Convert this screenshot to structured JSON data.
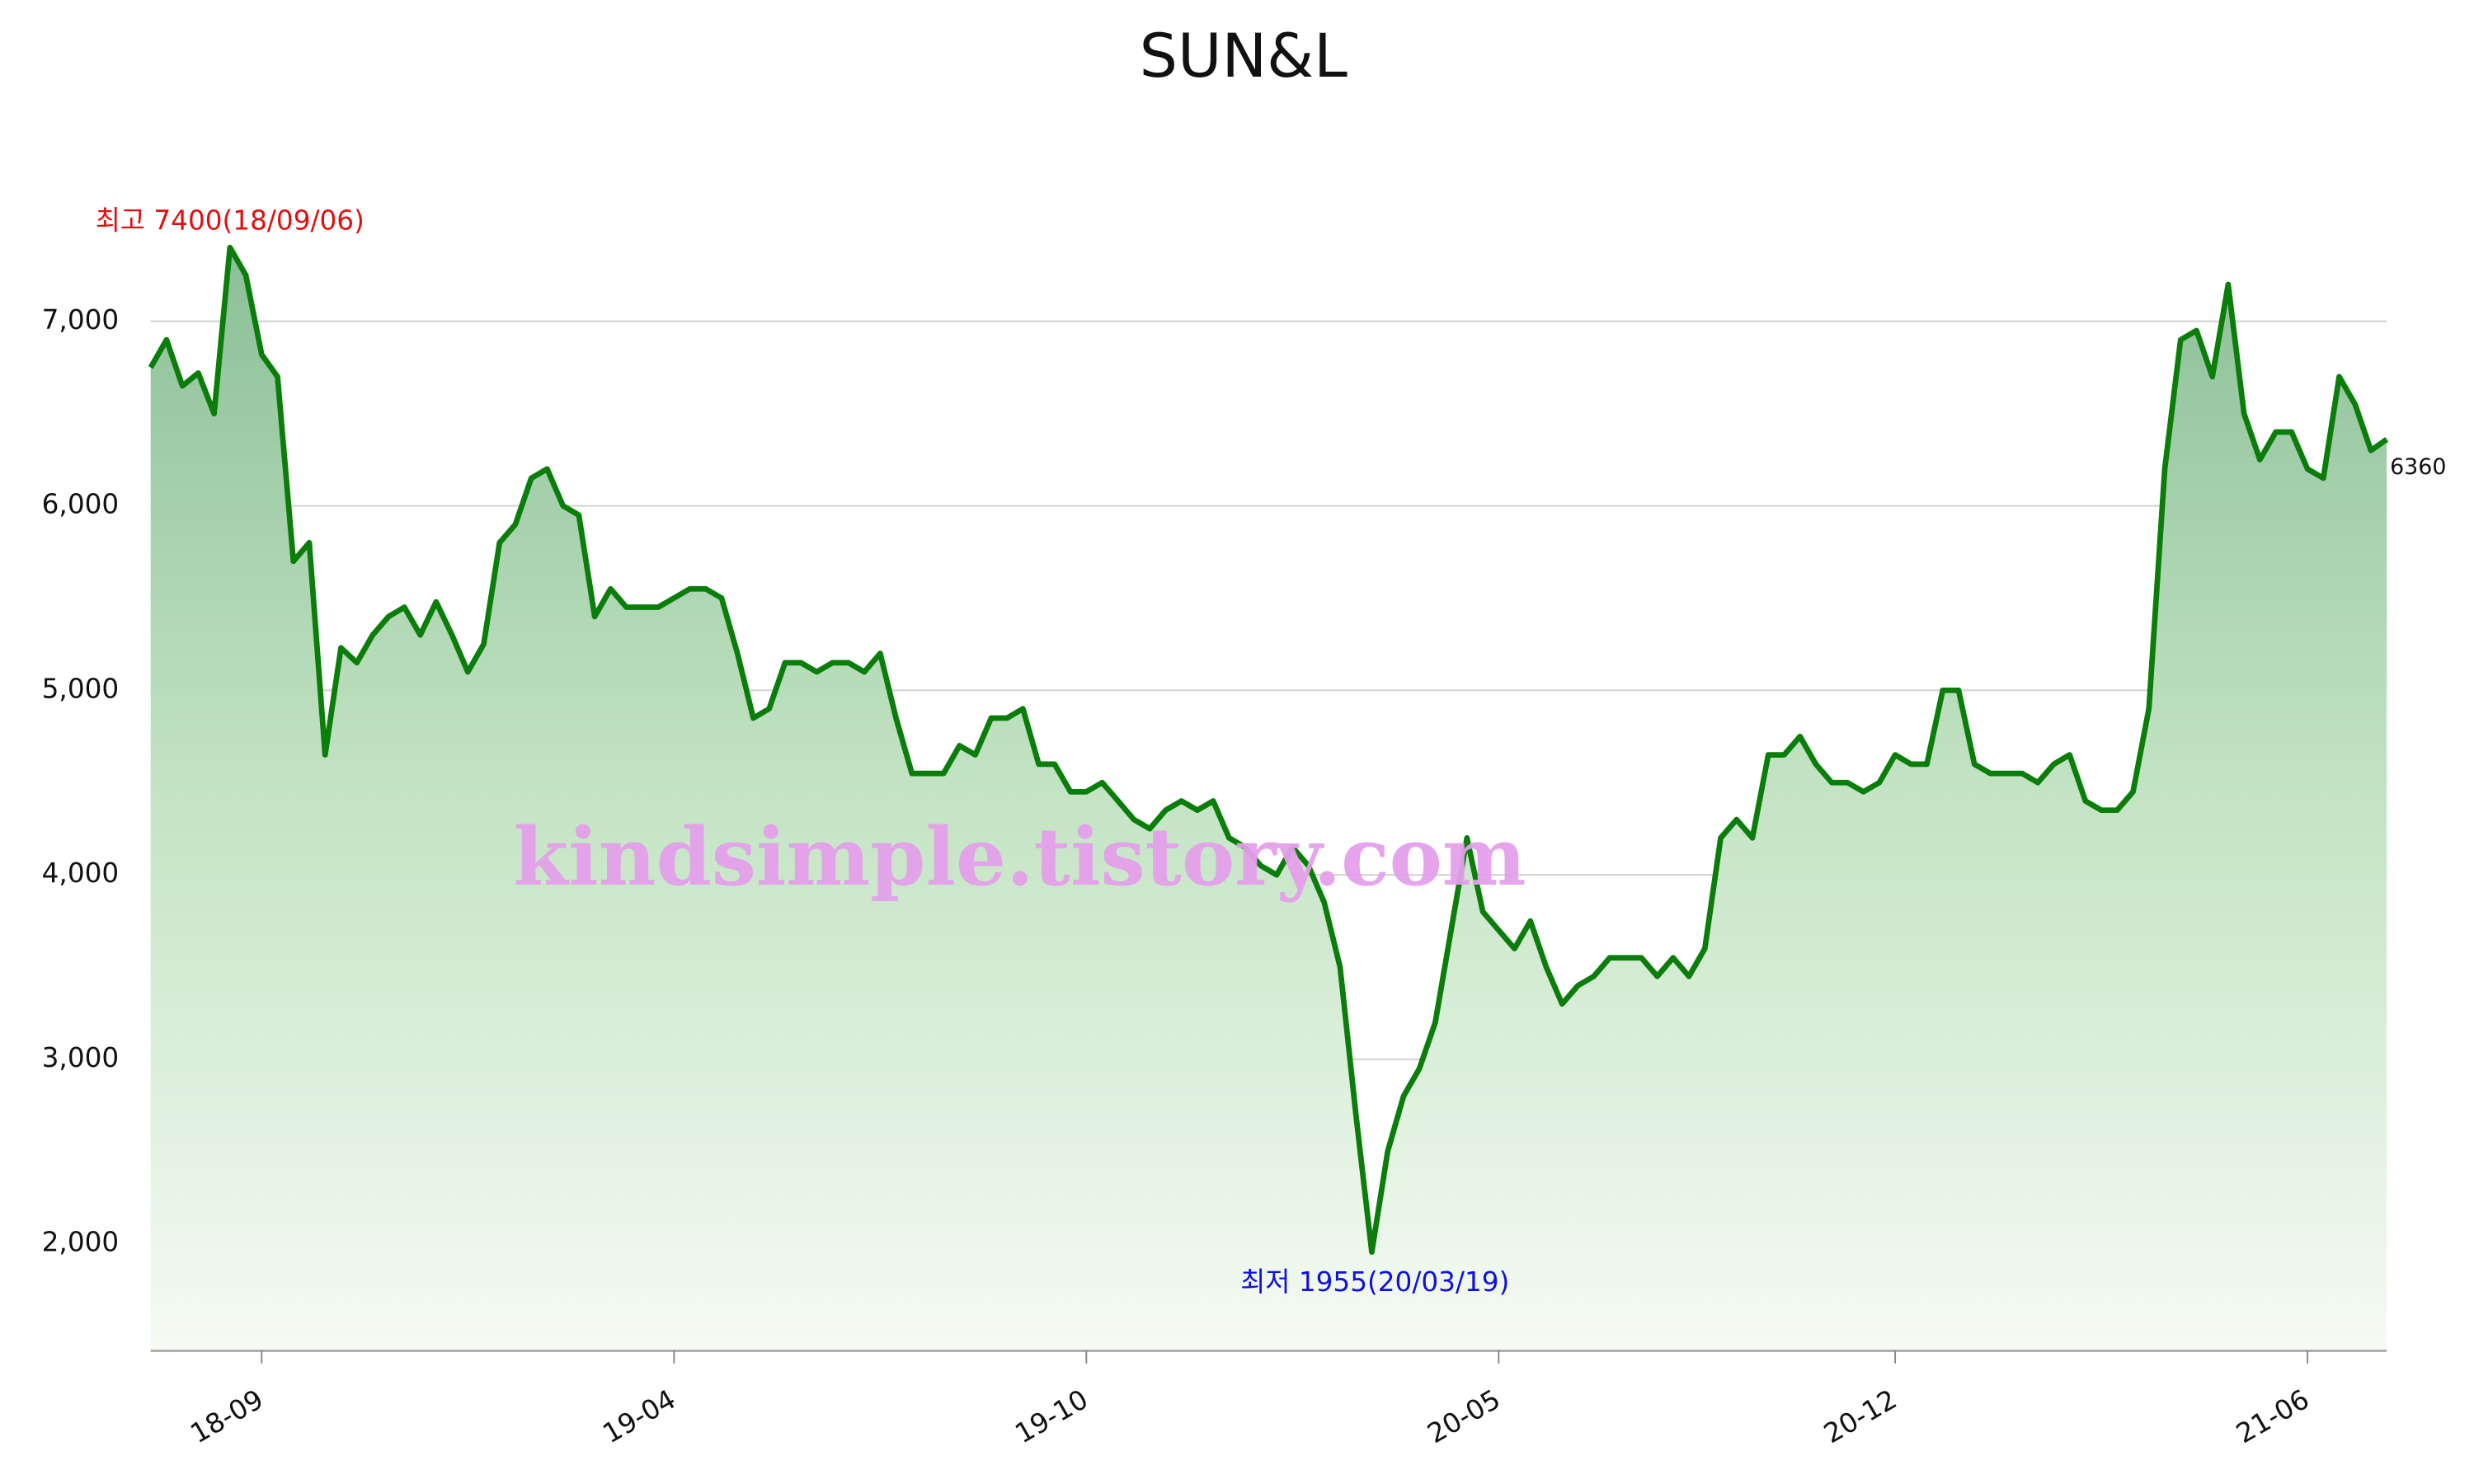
{
  "chart_data": {
    "type": "line",
    "title": "SUN&L",
    "categories": [
      null,
      null,
      null,
      null,
      null,
      null,
      null,
      "18-09",
      null,
      null,
      null,
      null,
      null,
      null,
      null,
      null,
      null,
      null,
      null,
      null,
      null,
      null,
      null,
      null,
      null,
      null,
      null,
      null,
      null,
      null,
      null,
      null,
      null,
      "19-04",
      null,
      null,
      null,
      null,
      null,
      null,
      null,
      null,
      null,
      null,
      null,
      null,
      null,
      null,
      null,
      null,
      null,
      null,
      null,
      null,
      null,
      null,
      null,
      null,
      null,
      "19-10",
      null,
      null,
      null,
      null,
      null,
      null,
      null,
      null,
      null,
      null,
      null,
      null,
      null,
      null,
      null,
      null,
      null,
      null,
      null,
      null,
      null,
      null,
      null,
      null,
      null,
      "20-05",
      null,
      null,
      null,
      null,
      null,
      null,
      null,
      null,
      null,
      null,
      null,
      null,
      null,
      null,
      null,
      null,
      null,
      null,
      null,
      null,
      null,
      null,
      null,
      null,
      "20-12",
      null,
      null,
      null,
      null,
      null,
      null,
      null,
      null,
      null,
      null,
      null,
      null,
      null,
      null,
      null,
      null,
      null,
      null,
      null,
      null,
      null,
      null,
      null,
      null,
      null,
      "21-06",
      null,
      null,
      null,
      null,
      null
    ],
    "series": [
      {
        "color": "#0a7d0a",
        "values": [
          6750,
          6900,
          6650,
          6720,
          6500,
          7400,
          7250,
          6820,
          6700,
          5700,
          5800,
          4650,
          5230,
          5150,
          5300,
          5400,
          5450,
          5300,
          5480,
          5300,
          5100,
          5250,
          5800,
          5900,
          6150,
          6200,
          6000,
          5950,
          5400,
          5550,
          5450,
          5450,
          5450,
          5500,
          5550,
          5550,
          5500,
          5200,
          4850,
          4900,
          5150,
          5150,
          5100,
          5150,
          5150,
          5100,
          5200,
          4850,
          4550,
          4550,
          4550,
          4700,
          4650,
          4850,
          4850,
          4900,
          4600,
          4600,
          4450,
          4450,
          4500,
          4400,
          4300,
          4250,
          4350,
          4400,
          4350,
          4400,
          4200,
          4150,
          4050,
          4000,
          4150,
          4050,
          3850,
          3500,
          2700,
          1955,
          2500,
          2800,
          2950,
          3200,
          3700,
          4200,
          3800,
          3700,
          3600,
          3750,
          3500,
          3300,
          3400,
          3450,
          3550,
          3550,
          3550,
          3450,
          3550,
          3450,
          3600,
          4200,
          4300,
          4200,
          4650,
          4650,
          4750,
          4600,
          4500,
          4500,
          4450,
          4500,
          4650,
          4600,
          4600,
          5000,
          5000,
          4600,
          4550,
          4550,
          4550,
          4500,
          4600,
          4650,
          4400,
          4350,
          4350,
          4450,
          4900,
          6200,
          6900,
          6950,
          6700,
          7200,
          6500,
          6250,
          6400,
          6400,
          6200,
          6150,
          6700,
          6550,
          6300,
          6360
        ]
      }
    ],
    "ylim": [
      1420,
      7530
    ],
    "yticks": [
      {
        "value": 2000,
        "label": "2,000"
      },
      {
        "value": 3000,
        "label": "3,000"
      },
      {
        "value": 4000,
        "label": "4,000"
      },
      {
        "value": 5000,
        "label": "5,000"
      },
      {
        "value": 6000,
        "label": "6,000"
      },
      {
        "value": 7000,
        "label": "7,000"
      }
    ],
    "grid": true,
    "annotations": [
      {
        "text": "최고 7400(18/09/06)",
        "color": "#e01010"
      },
      {
        "text": "최저 1955(20/03/19)",
        "color": "#1010e0"
      }
    ],
    "watermark": "kindsimple.tistory.com"
  }
}
